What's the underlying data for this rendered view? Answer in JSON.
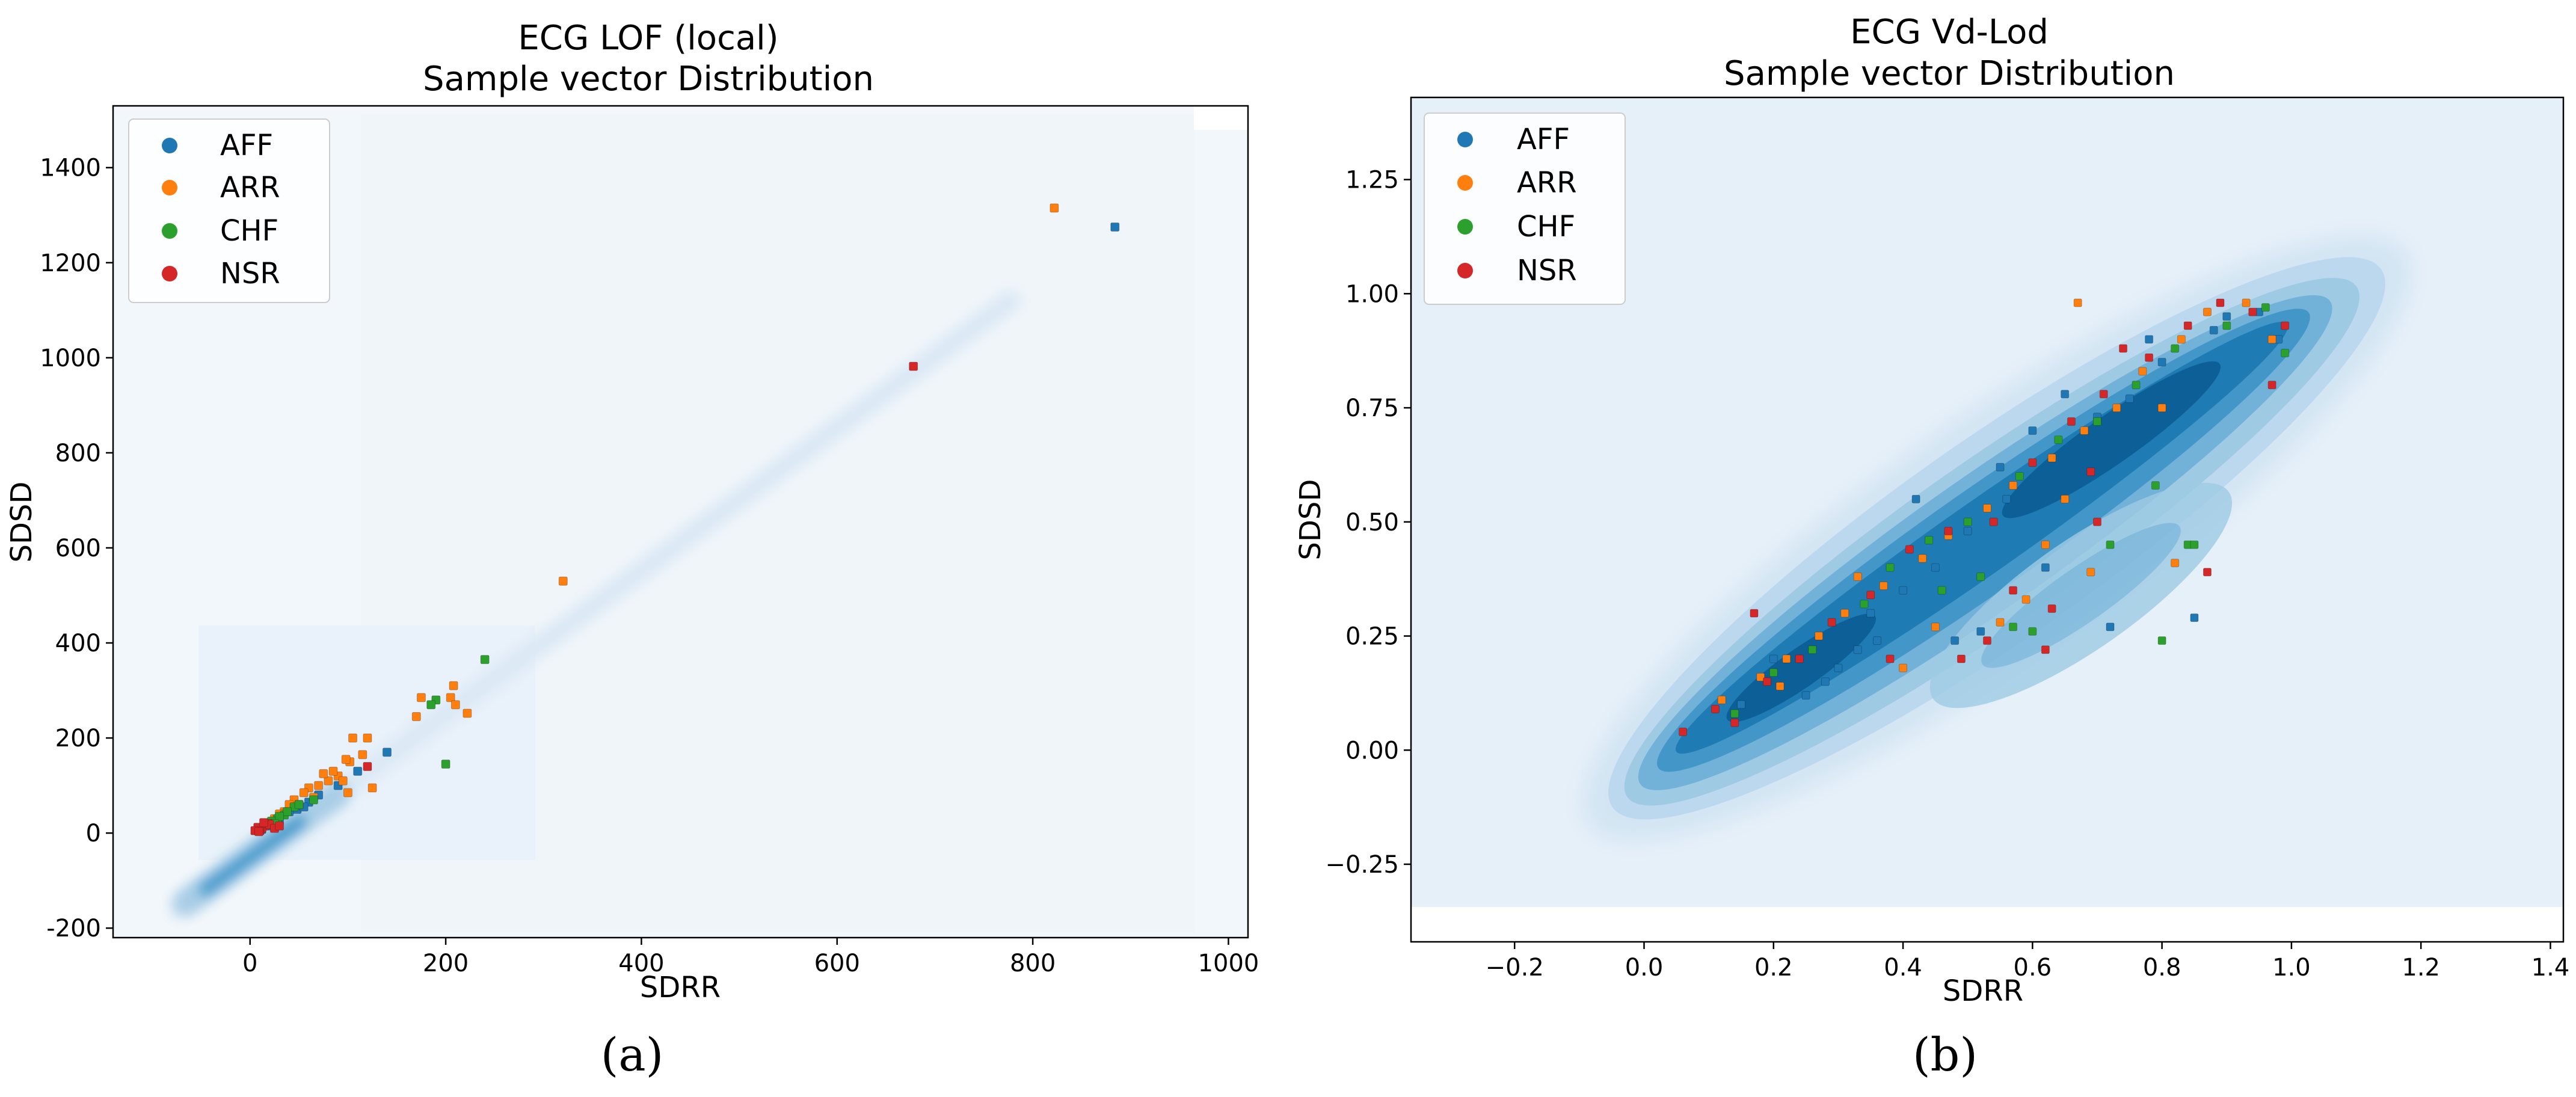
{
  "chart_data": [
    {
      "type": "scatter",
      "title_line1": "ECG LOF (local)",
      "title_line2": "Sample vector Distribution",
      "xlabel": "SDRR",
      "ylabel": "SDSD",
      "xlim": [
        -140,
        1020
      ],
      "ylim": [
        -220,
        1530
      ],
      "xticks": [
        0,
        200,
        400,
        600,
        800,
        1000
      ],
      "yticks": [
        -200,
        0,
        200,
        400,
        600,
        800,
        1000,
        1200,
        1400
      ],
      "panel_label": "(a)",
      "legend": [
        "AFF",
        "ARR",
        "CHF",
        "NSR"
      ],
      "colors": {
        "AFF": "#1f77b4",
        "ARR": "#ff7f0e",
        "CHF": "#2ca02c",
        "NSR": "#d62728"
      },
      "series": [
        {
          "name": "AFF",
          "points": [
            [
              884,
              1275
            ],
            [
              140,
              170
            ],
            [
              60,
              65
            ],
            [
              48,
              50
            ],
            [
              30,
              25
            ],
            [
              20,
              15
            ],
            [
              70,
              80
            ],
            [
              90,
              100
            ],
            [
              110,
              130
            ],
            [
              12,
              8
            ],
            [
              40,
              45
            ],
            [
              55,
              55
            ]
          ]
        },
        {
          "name": "ARR",
          "points": [
            [
              822,
              1315
            ],
            [
              320,
              530
            ],
            [
              208,
              310
            ],
            [
              205,
              285
            ],
            [
              210,
              270
            ],
            [
              222,
              252
            ],
            [
              175,
              285
            ],
            [
              170,
              245
            ],
            [
              120,
              200
            ],
            [
              105,
              200
            ],
            [
              115,
              165
            ],
            [
              102,
              150
            ],
            [
              98,
              155
            ],
            [
              90,
              120
            ],
            [
              80,
              110
            ],
            [
              75,
              125
            ],
            [
              70,
              100
            ],
            [
              60,
              95
            ],
            [
              55,
              85
            ],
            [
              45,
              70
            ],
            [
              40,
              60
            ],
            [
              35,
              45
            ],
            [
              30,
              40
            ],
            [
              25,
              30
            ],
            [
              100,
              85
            ],
            [
              125,
              95
            ],
            [
              85,
              130
            ],
            [
              95,
              110
            ],
            [
              65,
              75
            ],
            [
              50,
              60
            ]
          ]
        },
        {
          "name": "CHF",
          "points": [
            [
              240,
              365
            ],
            [
              190,
              280
            ],
            [
              185,
              270
            ],
            [
              200,
              145
            ],
            [
              45,
              55
            ],
            [
              35,
              38
            ],
            [
              28,
              30
            ],
            [
              22,
              25
            ],
            [
              50,
              60
            ],
            [
              38,
              45
            ],
            [
              30,
              35
            ],
            [
              25,
              20
            ],
            [
              65,
              70
            ]
          ]
        },
        {
          "name": "NSR",
          "points": [
            [
              678,
              982
            ],
            [
              120,
              140
            ],
            [
              15,
              15
            ],
            [
              12,
              10
            ],
            [
              10,
              5
            ],
            [
              8,
              12
            ],
            [
              5,
              5
            ],
            [
              18,
              20
            ],
            [
              20,
              18
            ],
            [
              25,
              10
            ],
            [
              14,
              22
            ],
            [
              9,
              3
            ],
            [
              30,
              15
            ]
          ]
        }
      ]
    },
    {
      "type": "scatter",
      "title_line1": "ECG Vd-Lod",
      "title_line2": "Sample vector Distribution",
      "xlabel": "SDRR",
      "ylabel": "SDSD",
      "xlim": [
        -0.36,
        1.42
      ],
      "ylim": [
        -0.42,
        1.43
      ],
      "xticks": [
        "−0.2",
        "0.0",
        "0.2",
        "0.4",
        "0.6",
        "0.8",
        "1.0",
        "1.2",
        "1.4"
      ],
      "xtick_values": [
        -0.2,
        0.0,
        0.2,
        0.4,
        0.6,
        0.8,
        1.0,
        1.2,
        1.4
      ],
      "yticks": [
        "−0.25",
        "0.00",
        "0.25",
        "0.50",
        "0.75",
        "1.00",
        "1.25"
      ],
      "ytick_values": [
        -0.25,
        0.0,
        0.25,
        0.5,
        0.75,
        1.0,
        1.25
      ],
      "panel_label": "(b)",
      "legend": [
        "AFF",
        "ARR",
        "CHF",
        "NSR"
      ],
      "colors": {
        "AFF": "#1f77b4",
        "ARR": "#ff7f0e",
        "CHF": "#2ca02c",
        "NSR": "#d62728"
      },
      "series": [
        {
          "name": "AFF",
          "points": [
            [
              0.72,
              0.27
            ],
            [
              0.85,
              0.29
            ],
            [
              0.56,
              0.55
            ],
            [
              0.6,
              0.7
            ],
            [
              0.7,
              0.73
            ],
            [
              0.78,
              0.9
            ],
            [
              0.9,
              0.95
            ],
            [
              0.95,
              0.96
            ],
            [
              0.3,
              0.18
            ],
            [
              0.25,
              0.12
            ],
            [
              0.35,
              0.3
            ],
            [
              0.4,
              0.35
            ],
            [
              0.45,
              0.4
            ],
            [
              0.5,
              0.48
            ],
            [
              0.42,
              0.55
            ],
            [
              0.33,
              0.22
            ],
            [
              0.28,
              0.15
            ],
            [
              0.55,
              0.62
            ],
            [
              0.65,
              0.78
            ],
            [
              0.8,
              0.85
            ],
            [
              0.75,
              0.77
            ],
            [
              0.52,
              0.26
            ],
            [
              0.48,
              0.24
            ],
            [
              0.36,
              0.24
            ],
            [
              0.62,
              0.4
            ],
            [
              0.88,
              0.92
            ],
            [
              0.98,
              0.9
            ],
            [
              0.2,
              0.2
            ],
            [
              0.15,
              0.1
            ]
          ]
        },
        {
          "name": "ARR",
          "points": [
            [
              0.67,
              0.98
            ],
            [
              0.69,
              0.39
            ],
            [
              0.82,
              0.41
            ],
            [
              0.62,
              0.45
            ],
            [
              0.12,
              0.11
            ],
            [
              0.18,
              0.16
            ],
            [
              0.22,
              0.2
            ],
            [
              0.27,
              0.25
            ],
            [
              0.31,
              0.3
            ],
            [
              0.37,
              0.36
            ],
            [
              0.43,
              0.42
            ],
            [
              0.47,
              0.47
            ],
            [
              0.53,
              0.53
            ],
            [
              0.57,
              0.58
            ],
            [
              0.63,
              0.64
            ],
            [
              0.68,
              0.7
            ],
            [
              0.73,
              0.75
            ],
            [
              0.77,
              0.83
            ],
            [
              0.83,
              0.9
            ],
            [
              0.87,
              0.96
            ],
            [
              0.93,
              0.98
            ],
            [
              0.97,
              0.9
            ],
            [
              0.4,
              0.18
            ],
            [
              0.55,
              0.28
            ],
            [
              0.59,
              0.33
            ],
            [
              0.65,
              0.55
            ],
            [
              0.21,
              0.14
            ],
            [
              0.33,
              0.38
            ],
            [
              0.45,
              0.27
            ],
            [
              0.8,
              0.75
            ]
          ]
        },
        {
          "name": "CHF",
          "points": [
            [
              0.84,
              0.45
            ],
            [
              0.85,
              0.45
            ],
            [
              0.8,
              0.24
            ],
            [
              0.79,
              0.58
            ],
            [
              0.2,
              0.17
            ],
            [
              0.26,
              0.22
            ],
            [
              0.34,
              0.32
            ],
            [
              0.38,
              0.4
            ],
            [
              0.44,
              0.46
            ],
            [
              0.5,
              0.5
            ],
            [
              0.58,
              0.6
            ],
            [
              0.64,
              0.68
            ],
            [
              0.7,
              0.72
            ],
            [
              0.76,
              0.8
            ],
            [
              0.82,
              0.88
            ],
            [
              0.9,
              0.93
            ],
            [
              0.96,
              0.97
            ],
            [
              0.99,
              0.87
            ],
            [
              0.57,
              0.27
            ],
            [
              0.6,
              0.26
            ],
            [
              0.72,
              0.45
            ],
            [
              0.46,
              0.35
            ],
            [
              0.14,
              0.08
            ],
            [
              0.52,
              0.38
            ]
          ]
        },
        {
          "name": "NSR",
          "points": [
            [
              0.06,
              0.04
            ],
            [
              0.17,
              0.3
            ],
            [
              0.69,
              0.61
            ],
            [
              0.87,
              0.39
            ],
            [
              0.97,
              0.8
            ],
            [
              0.62,
              0.22
            ],
            [
              0.63,
              0.31
            ],
            [
              0.7,
              0.5
            ],
            [
              0.53,
              0.24
            ],
            [
              0.49,
              0.2
            ],
            [
              0.38,
              0.2
            ],
            [
              0.11,
              0.09
            ],
            [
              0.14,
              0.06
            ],
            [
              0.19,
              0.15
            ],
            [
              0.24,
              0.2
            ],
            [
              0.29,
              0.28
            ],
            [
              0.35,
              0.34
            ],
            [
              0.41,
              0.44
            ],
            [
              0.47,
              0.48
            ],
            [
              0.54,
              0.5
            ],
            [
              0.6,
              0.63
            ],
            [
              0.66,
              0.72
            ],
            [
              0.71,
              0.78
            ],
            [
              0.78,
              0.86
            ],
            [
              0.84,
              0.93
            ],
            [
              0.89,
              0.98
            ],
            [
              0.94,
              0.96
            ],
            [
              0.99,
              0.93
            ],
            [
              0.74,
              0.88
            ],
            [
              0.57,
              0.35
            ]
          ]
        }
      ]
    }
  ]
}
